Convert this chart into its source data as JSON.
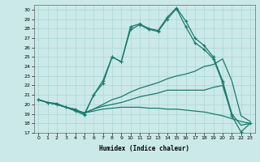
{
  "xlabel": "Humidex (Indice chaleur)",
  "xlim": [
    -0.5,
    23.5
  ],
  "ylim": [
    17,
    30.5
  ],
  "yticks": [
    17,
    18,
    19,
    20,
    21,
    22,
    23,
    24,
    25,
    26,
    27,
    28,
    29,
    30
  ],
  "xticks": [
    0,
    1,
    2,
    3,
    4,
    5,
    6,
    7,
    8,
    9,
    10,
    11,
    12,
    13,
    14,
    15,
    16,
    17,
    18,
    19,
    20,
    21,
    22,
    23
  ],
  "bg_color": "#cce9e9",
  "grid_color": "#aad4d4",
  "line_color": "#1a7a6e",
  "line1_x": [
    0,
    1,
    2,
    3,
    4,
    5,
    6,
    7,
    8,
    9,
    10,
    11,
    12,
    13,
    14,
    15,
    16,
    17,
    18,
    19,
    20,
    21
  ],
  "line1_y": [
    20.5,
    20.2,
    20.1,
    19.7,
    19.5,
    19.0,
    21.0,
    22.5,
    25.0,
    24.5,
    28.2,
    28.5,
    28.0,
    27.8,
    29.2,
    30.2,
    28.8,
    27.0,
    26.2,
    25.0,
    22.5,
    19.0
  ],
  "line2_x": [
    0,
    1,
    2,
    3,
    4,
    5,
    6,
    7,
    8,
    9,
    10,
    11,
    12,
    13,
    14,
    15,
    16,
    17,
    18,
    19,
    20,
    21,
    22,
    23
  ],
  "line2_y": [
    20.5,
    20.2,
    20.0,
    19.7,
    19.3,
    18.9,
    21.0,
    22.2,
    25.0,
    24.5,
    27.9,
    28.4,
    27.9,
    27.7,
    29.0,
    30.1,
    28.2,
    26.5,
    25.8,
    24.8,
    22.3,
    18.8,
    17.1,
    18.0
  ],
  "line3_x": [
    0,
    1,
    2,
    3,
    4,
    5,
    6,
    7,
    8,
    9,
    10,
    11,
    12,
    13,
    14,
    15,
    16,
    17,
    18,
    19,
    20,
    21,
    22,
    23
  ],
  "line3_y": [
    20.5,
    20.2,
    20.0,
    19.7,
    19.4,
    19.1,
    19.5,
    20.0,
    20.5,
    20.8,
    21.3,
    21.7,
    22.0,
    22.3,
    22.7,
    23.0,
    23.2,
    23.5,
    24.0,
    24.2,
    24.8,
    22.5,
    18.8,
    18.2
  ],
  "line4_x": [
    0,
    1,
    2,
    3,
    4,
    5,
    6,
    7,
    8,
    9,
    10,
    11,
    12,
    13,
    14,
    15,
    16,
    17,
    18,
    19,
    20,
    21,
    22,
    23
  ],
  "line4_y": [
    20.5,
    20.2,
    20.0,
    19.7,
    19.4,
    19.1,
    19.3,
    19.5,
    19.6,
    19.7,
    19.7,
    19.7,
    19.6,
    19.6,
    19.5,
    19.5,
    19.4,
    19.3,
    19.2,
    19.0,
    18.8,
    18.5,
    18.2,
    18.0
  ],
  "line5_x": [
    0,
    1,
    2,
    3,
    4,
    5,
    6,
    7,
    8,
    9,
    10,
    11,
    12,
    13,
    14,
    15,
    16,
    17,
    18,
    19,
    20,
    21,
    22,
    23
  ],
  "line5_y": [
    20.5,
    20.2,
    20.0,
    19.7,
    19.4,
    19.1,
    19.5,
    19.8,
    20.0,
    20.2,
    20.5,
    20.8,
    21.0,
    21.2,
    21.5,
    21.5,
    21.5,
    21.5,
    21.5,
    21.8,
    22.0,
    19.0,
    17.8,
    18.0
  ]
}
